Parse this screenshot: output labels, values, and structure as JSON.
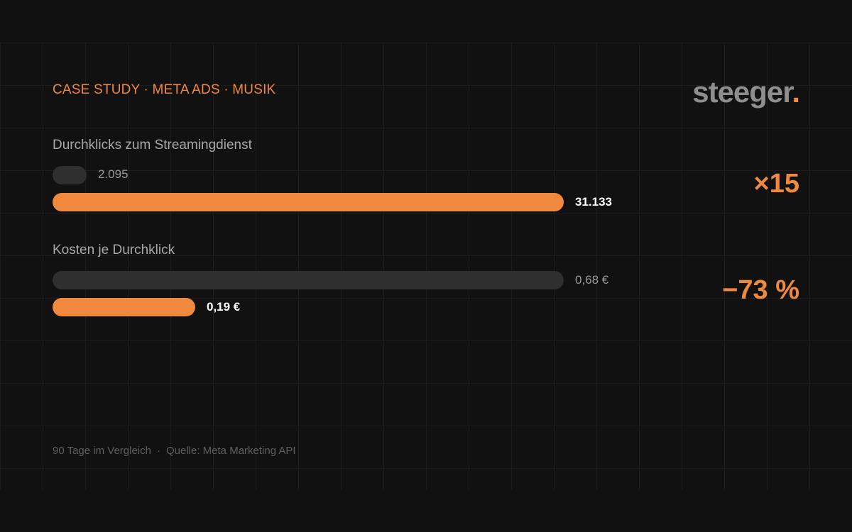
{
  "header": {
    "kicker": "CASE STUDY · META ADS · MUSIK",
    "logo_text": "steeger",
    "logo_dot": "."
  },
  "colors": {
    "background": "#111111",
    "accent": "#f0883e",
    "before_bar": "#2f2f2f"
  },
  "chart_data": {
    "type": "bar",
    "orientation": "horizontal",
    "metrics": [
      {
        "title": "Durchklicks zum Streamingdienst",
        "before": 2095,
        "after": 31133,
        "before_label": "2.095",
        "after_label": "31.133",
        "delta": "×15"
      },
      {
        "title": "Kosten je Durchklick",
        "before": 0.68,
        "after": 0.19,
        "before_label": "0,68 €",
        "after_label": "0,19 €",
        "delta": "−73 %"
      }
    ]
  },
  "footer": {
    "period": "90 Tage im Vergleich",
    "separator": "·",
    "source": "Quelle: Meta Marketing API"
  }
}
